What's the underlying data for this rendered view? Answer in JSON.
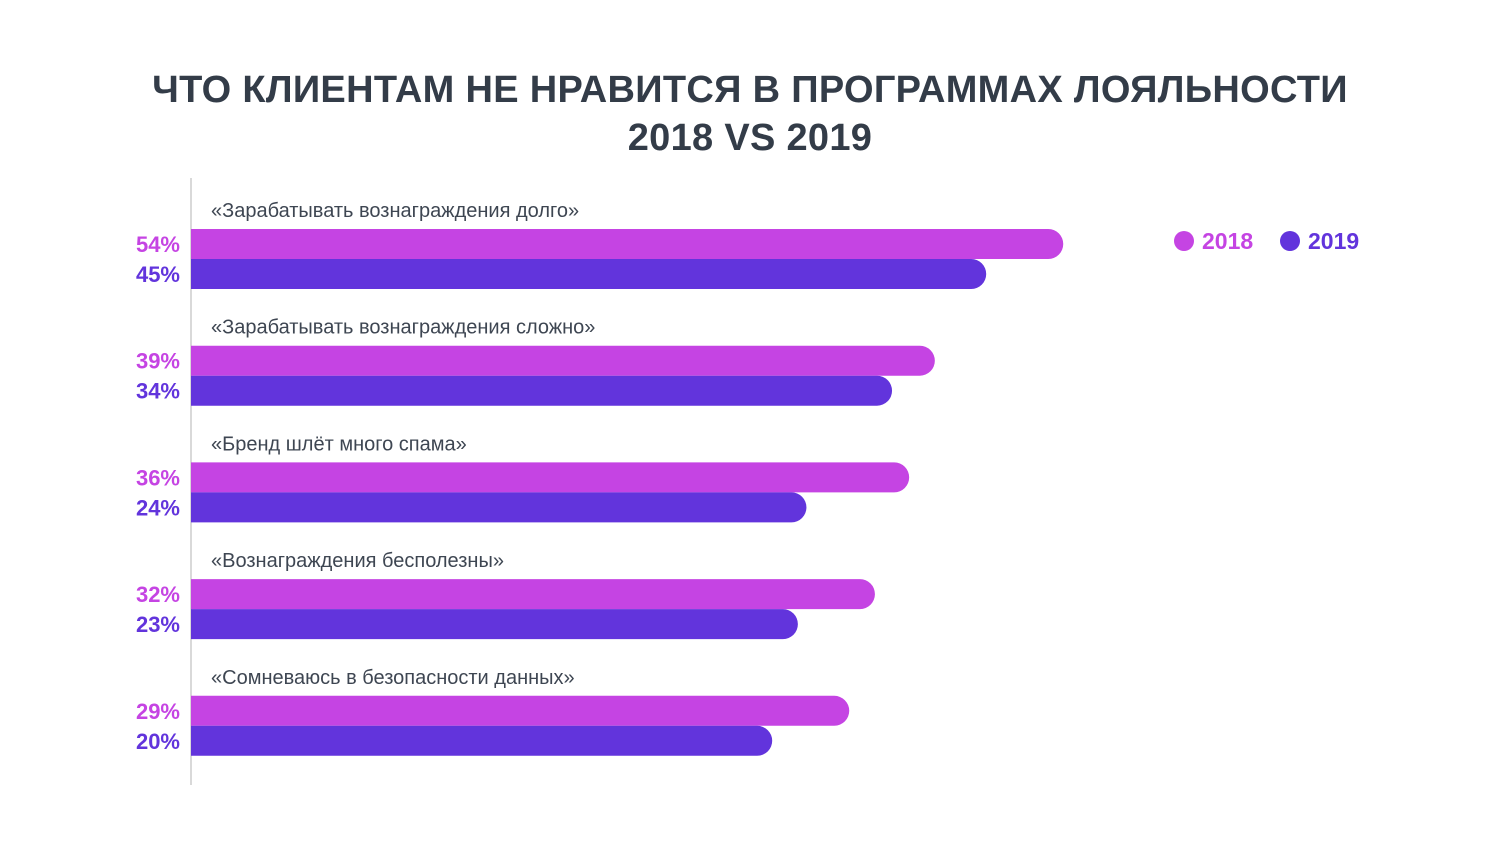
{
  "chart_data": {
    "type": "bar",
    "orientation": "horizontal",
    "title": "ЧТО КЛИЕНТАМ НЕ НРАВИТСЯ В ПРОГРАММАХ ЛОЯЛЬНОСТИ",
    "subtitle": "2018 VS 2019",
    "categories": [
      "«Зарабатывать вознаграждения долго»",
      "«Зарабатывать вознаграждения сложно»",
      "«Бренд шлёт много спама»",
      "«Вознаграждения бесполезны»",
      "«Сомневаюсь в безопасности данных»"
    ],
    "series": [
      {
        "name": "2018",
        "color": "#C544E3",
        "values": [
          54,
          39,
          36,
          32,
          29
        ],
        "labels": [
          "54%",
          "39%",
          "36%",
          "32%",
          "29%"
        ]
      },
      {
        "name": "2019",
        "color": "#6234DC",
        "values": [
          45,
          34,
          24,
          23,
          20
        ],
        "labels": [
          "45%",
          "34%",
          "24%",
          "23%",
          "20%"
        ]
      }
    ],
    "unit": "%",
    "legend": "top-right",
    "grid": false,
    "xlabel": "",
    "ylabel": ""
  }
}
